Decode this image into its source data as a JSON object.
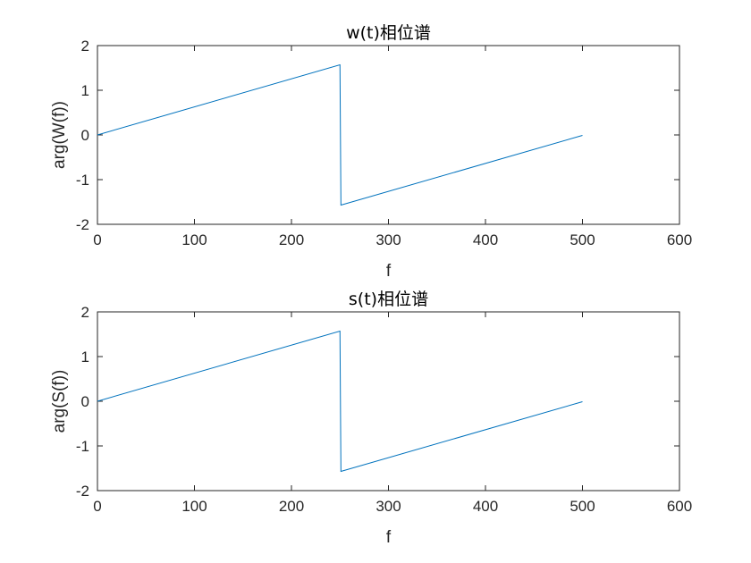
{
  "chart_data": [
    {
      "type": "line",
      "title": "w(t)相位谱",
      "xlabel": "f",
      "ylabel": "arg(W(f))",
      "xlim": [
        0,
        600
      ],
      "ylim": [
        -2,
        2
      ],
      "xticks": [
        0,
        100,
        200,
        300,
        400,
        500,
        600
      ],
      "yticks": [
        -2,
        -1,
        0,
        1,
        2
      ],
      "grid": false,
      "color": "#0072bd",
      "series": [
        {
          "x": [
            0,
            250,
            251,
            500
          ],
          "y": [
            0,
            1.57,
            -1.57,
            -0.01
          ]
        }
      ]
    },
    {
      "type": "line",
      "title": "s(t)相位谱",
      "xlabel": "f",
      "ylabel": "arg(S(f))",
      "xlim": [
        0,
        600
      ],
      "ylim": [
        -2,
        2
      ],
      "xticks": [
        0,
        100,
        200,
        300,
        400,
        500,
        600
      ],
      "yticks": [
        -2,
        -1,
        0,
        1,
        2
      ],
      "grid": false,
      "color": "#0072bd",
      "series": [
        {
          "x": [
            0,
            250,
            251,
            500
          ],
          "y": [
            0,
            1.57,
            -1.57,
            -0.01
          ]
        }
      ]
    }
  ]
}
